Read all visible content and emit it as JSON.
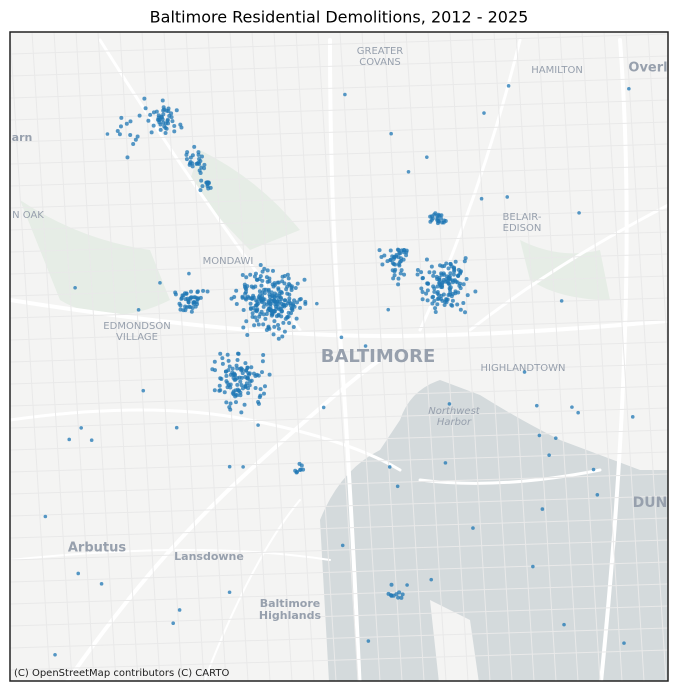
{
  "title": "Baltimore Residential Demolitions, 2012 - 2025",
  "labels": [
    [
      "GREATER",
      "COVANS"
    ],
    [
      "HAMILTON"
    ],
    [
      "Overl"
    ],
    [
      "arn"
    ],
    [
      "N OAK"
    ],
    [
      "BELAIR-",
      "EDISON"
    ],
    [
      "MONDAWI"
    ],
    [
      "EDMONDSON",
      "VILLAGE"
    ],
    [
      "BALTIMORE"
    ],
    [
      "HIGHLANDTOWN"
    ],
    [
      "Northwest",
      "Harbor"
    ],
    [
      "DUN"
    ],
    [
      "Arbutus"
    ],
    [
      "Lansdowne"
    ],
    [
      "Baltimore",
      "Highlands"
    ]
  ],
  "attribution": "(C) OpenStreetMap contributors (C) CARTO"
}
